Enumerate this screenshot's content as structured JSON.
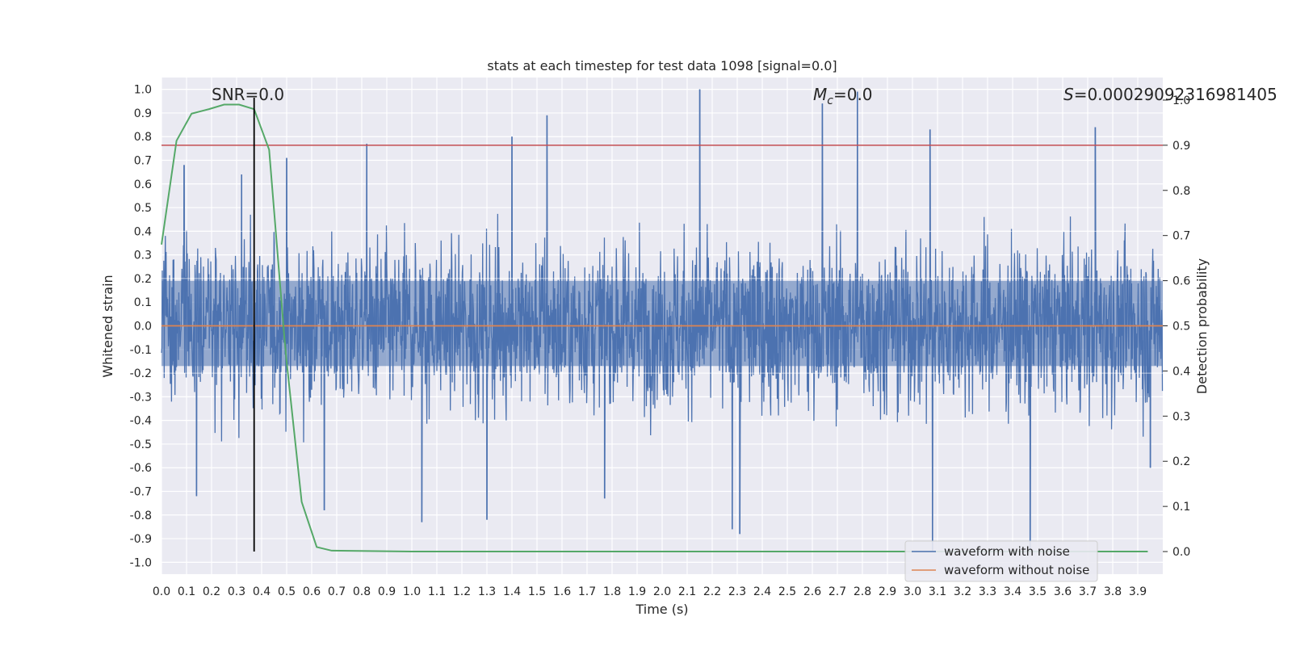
{
  "chart_data": {
    "type": "line",
    "title": "stats at each timestep for test data 1098 [signal=0.0]",
    "xlabel": "Time (s)",
    "ylabel": "Whitened strain",
    "y2label": "Detection probability",
    "xlim": [
      0.0,
      4.0
    ],
    "ylim": [
      -1.05,
      1.05
    ],
    "y2lim": [
      -0.05,
      1.05
    ],
    "x_ticks": [
      0.0,
      0.1,
      0.2,
      0.3,
      0.4,
      0.5,
      0.6,
      0.7,
      0.8,
      0.9,
      1.0,
      1.1,
      1.2,
      1.3,
      1.4,
      1.5,
      1.6,
      1.7,
      1.8,
      1.9,
      2.0,
      2.1,
      2.2,
      2.3,
      2.4,
      2.5,
      2.6,
      2.7,
      2.8,
      2.9,
      3.0,
      3.1,
      3.2,
      3.3,
      3.4,
      3.5,
      3.6,
      3.7,
      3.8,
      3.9
    ],
    "y_ticks": [
      1.0,
      0.9,
      0.8,
      0.7,
      0.6,
      0.5,
      0.4,
      0.3,
      0.2,
      0.1,
      0.0,
      -0.1,
      -0.2,
      -0.3,
      -0.4,
      -0.5,
      -0.6,
      -0.7,
      -0.8,
      -0.9,
      -1.0
    ],
    "y2_ticks": [
      1.0,
      0.9,
      0.8,
      0.7,
      0.6,
      0.5,
      0.4,
      0.3,
      0.2,
      0.1,
      0.0
    ],
    "grid": true,
    "legend_position": "bottom-right",
    "annotations": {
      "snr": "SNR=0.0",
      "mc_symbol": "M",
      "mc_subscript": "c",
      "mc_value": "=0.0",
      "s_symbol": "S",
      "s_value": "=0.00029092316981405"
    },
    "series": [
      {
        "name": "waveform with noise",
        "color": "#4c72b0",
        "description_values": "dense noise trace, amplitude mostly within ±0.5 with spikes up to about ±1.0",
        "highlight_peaks": [
          {
            "x": 0.09,
            "y": 0.68
          },
          {
            "x": 0.14,
            "y": -0.72
          },
          {
            "x": 0.32,
            "y": 0.64
          },
          {
            "x": 0.5,
            "y": 0.71
          },
          {
            "x": 0.65,
            "y": -0.78
          },
          {
            "x": 0.82,
            "y": 0.77
          },
          {
            "x": 1.04,
            "y": -0.83
          },
          {
            "x": 1.3,
            "y": -0.82
          },
          {
            "x": 1.4,
            "y": 0.8
          },
          {
            "x": 1.54,
            "y": 0.89
          },
          {
            "x": 1.77,
            "y": -0.73
          },
          {
            "x": 2.15,
            "y": 1.0
          },
          {
            "x": 2.28,
            "y": -0.86
          },
          {
            "x": 2.31,
            "y": -0.88
          },
          {
            "x": 2.64,
            "y": 0.94
          },
          {
            "x": 2.78,
            "y": 0.99
          },
          {
            "x": 3.07,
            "y": 0.83
          },
          {
            "x": 3.08,
            "y": -0.95
          },
          {
            "x": 3.47,
            "y": -0.95
          },
          {
            "x": 3.73,
            "y": 0.84
          },
          {
            "x": 3.95,
            "y": -0.6
          }
        ]
      },
      {
        "name": "waveform without noise",
        "color": "#dd8452",
        "x": [
          0.0,
          4.0
        ],
        "values": [
          0.0,
          0.0
        ]
      }
    ],
    "probability_curve": {
      "color": "#55a868",
      "x": [
        0.0,
        0.06,
        0.12,
        0.19,
        0.25,
        0.31,
        0.37,
        0.43,
        0.49,
        0.5,
        0.56,
        0.62,
        0.68,
        1.0,
        1.5,
        2.0,
        2.5,
        3.0,
        3.5,
        3.94
      ],
      "values": [
        0.68,
        0.91,
        0.97,
        0.98,
        0.99,
        0.99,
        0.98,
        0.89,
        0.48,
        0.42,
        0.11,
        0.01,
        0.002,
        0.0,
        0.0,
        0.0,
        0.0,
        0.0,
        0.0,
        0.0
      ]
    },
    "threshold_line": {
      "color": "#c44e52",
      "y2": 0.9
    },
    "vertical_marker": {
      "color": "#000000",
      "x": 0.37
    }
  }
}
